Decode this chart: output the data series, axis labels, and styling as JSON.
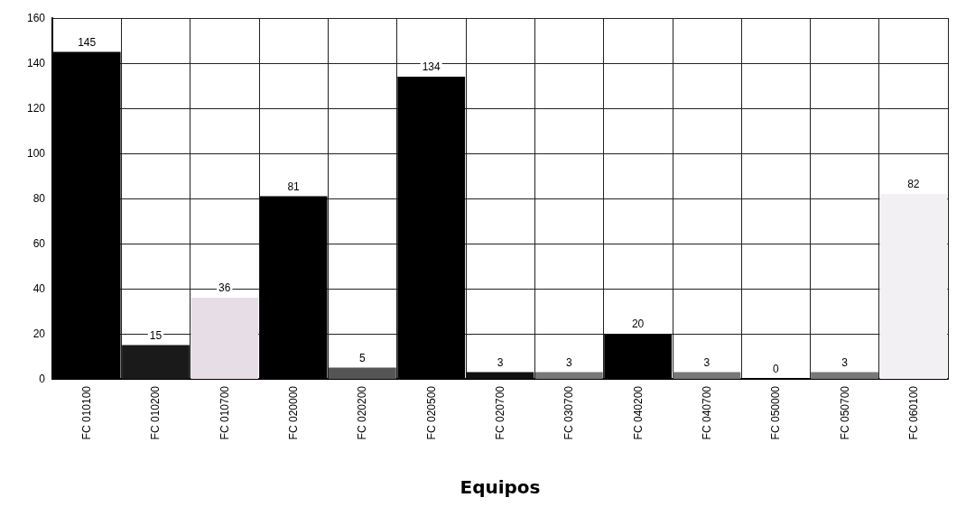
{
  "chart_data": {
    "type": "bar",
    "xlabel": "Equipos",
    "categories": [
      "FC 010100",
      "FC 010200",
      "FC 010700",
      "FC 020000",
      "FC 020200",
      "FC 020500",
      "FC 020700",
      "FC 030700",
      "FC 040200",
      "FC 040700",
      "FC 050000",
      "FC 050700",
      "FC 060100"
    ],
    "values": [
      145,
      15,
      36,
      81,
      5,
      134,
      3,
      3,
      20,
      3,
      0,
      3,
      82
    ],
    "colors": [
      "#000000",
      "#1a1a1a",
      "#e6dde6",
      "#000000",
      "#555555",
      "#000000",
      "#111111",
      "#777777",
      "#000000",
      "#777777",
      "#333333",
      "#777777",
      "#f2f0f2"
    ],
    "ylim": [
      0,
      160
    ],
    "yticks": [
      0,
      20,
      40,
      60,
      80,
      100,
      120,
      140,
      160
    ],
    "grid": true,
    "data_labels": true
  }
}
